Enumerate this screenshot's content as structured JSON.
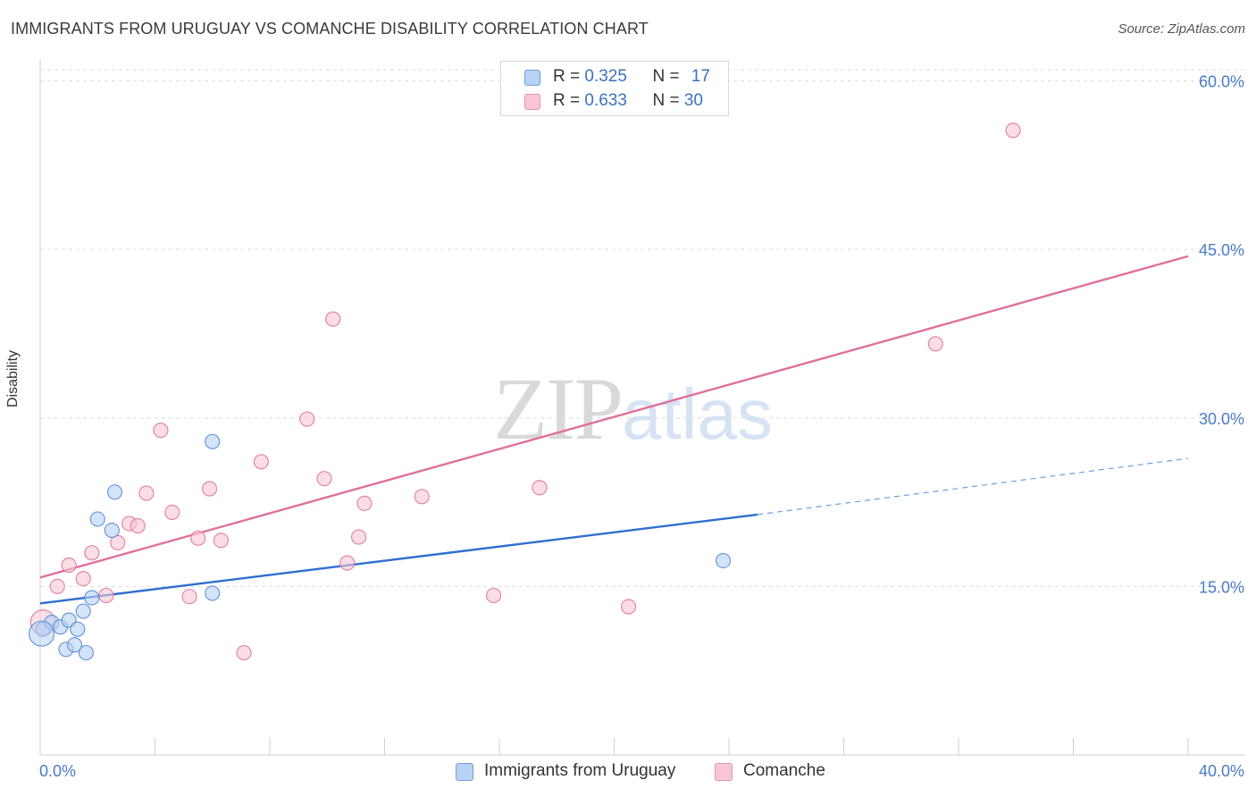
{
  "title": "IMMIGRANTS FROM URUGUAY VS COMANCHE DISABILITY CORRELATION CHART",
  "source": "Source: ZipAtlas.com",
  "watermark": {
    "zip": "ZIP",
    "atlas": "atlas"
  },
  "stats": [
    {
      "r_label": "R = ",
      "r_value": "0.325",
      "n_label": "N = ",
      "n_value": "17",
      "color": "#a9c8ef",
      "border": "#6f9fd8"
    },
    {
      "r_label": "R = ",
      "r_value": "0.633",
      "n_label": "N = ",
      "n_value": "30",
      "color": "#f8c6d6",
      "border": "#e893ae"
    }
  ],
  "legend": [
    "Immigrants from Uruguay",
    "Comanche"
  ],
  "chart_data": {
    "type": "scatter",
    "title": "IMMIGRANTS FROM URUGUAY VS COMANCHE DISABILITY CORRELATION CHART",
    "ylabel": "Disability",
    "xlabel": "",
    "xlim": [
      0,
      40
    ],
    "ylim": [
      0,
      61
    ],
    "x_tick_labels": [
      "0.0%",
      "40.0%"
    ],
    "y_ticks": [
      15,
      30,
      45,
      60
    ],
    "y_tick_labels": [
      "15.0%",
      "30.0%",
      "45.0%",
      "60.0%"
    ],
    "grid": "horizontal dashed",
    "legend_position": "bottom-center",
    "series": [
      {
        "name": "Immigrants from Uruguay",
        "color": "#5b8fd6",
        "fill": "#b8d2f3",
        "trend": {
          "x": [
            0,
            25
          ],
          "y": [
            13.5,
            21.4
          ],
          "dashed_to": [
            40,
            26.4
          ]
        },
        "points": [
          [
            0.1,
            11.2
          ],
          [
            0.4,
            11.8
          ],
          [
            0.7,
            11.4
          ],
          [
            0.9,
            9.4
          ],
          [
            1.0,
            12.0
          ],
          [
            1.2,
            9.8
          ],
          [
            1.3,
            11.2
          ],
          [
            1.5,
            12.8
          ],
          [
            1.6,
            9.1
          ],
          [
            1.8,
            14.0
          ],
          [
            2.0,
            21.0
          ],
          [
            2.5,
            20.0
          ],
          [
            2.6,
            23.4
          ],
          [
            6.0,
            27.9
          ],
          [
            6.0,
            14.4
          ],
          [
            23.8,
            17.3
          ],
          [
            0.05,
            10.8
          ]
        ]
      },
      {
        "name": "Comanche",
        "color": "#e07aa0",
        "fill": "#f8c6d6",
        "trend": {
          "x": [
            0,
            40
          ],
          "y": [
            15.8,
            44.4
          ]
        },
        "points": [
          [
            0.1,
            11.8
          ],
          [
            0.6,
            15.0
          ],
          [
            1.0,
            16.9
          ],
          [
            1.5,
            15.7
          ],
          [
            1.8,
            18.0
          ],
          [
            2.3,
            14.2
          ],
          [
            2.7,
            18.9
          ],
          [
            3.1,
            20.6
          ],
          [
            3.4,
            20.4
          ],
          [
            3.7,
            23.3
          ],
          [
            4.2,
            28.9
          ],
          [
            4.6,
            21.6
          ],
          [
            5.2,
            14.1
          ],
          [
            5.5,
            19.3
          ],
          [
            5.9,
            23.7
          ],
          [
            6.3,
            19.1
          ],
          [
            7.1,
            9.1
          ],
          [
            7.7,
            26.1
          ],
          [
            9.3,
            29.9
          ],
          [
            9.9,
            24.6
          ],
          [
            10.2,
            38.8
          ],
          [
            10.7,
            17.1
          ],
          [
            11.1,
            19.4
          ],
          [
            11.3,
            22.4
          ],
          [
            13.3,
            23.0
          ],
          [
            15.8,
            14.2
          ],
          [
            17.4,
            23.8
          ],
          [
            20.5,
            13.2
          ],
          [
            31.2,
            36.6
          ],
          [
            33.9,
            55.6
          ]
        ]
      }
    ]
  }
}
